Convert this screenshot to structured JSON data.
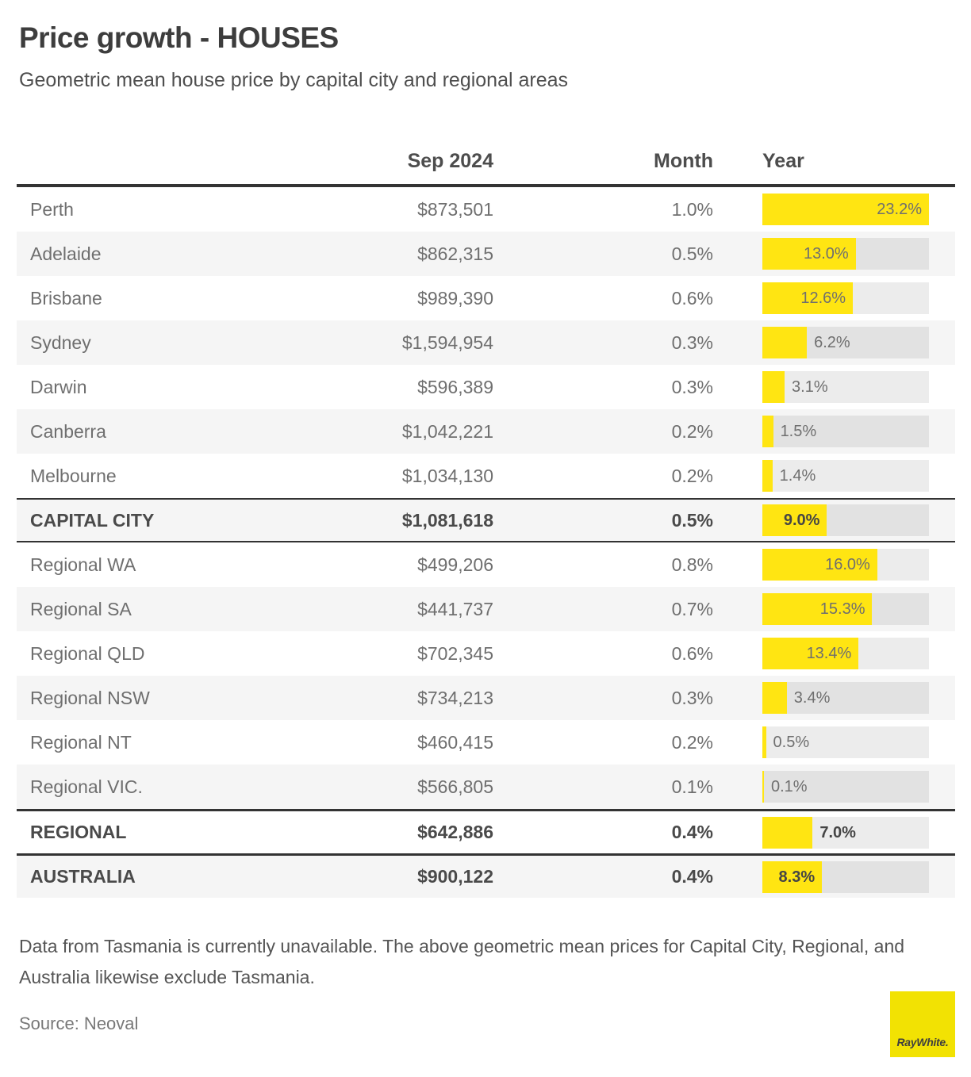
{
  "page": {
    "title": "Price growth - HOUSES",
    "subtitle": "Geometric mean house price by capital city and regional areas",
    "footnote": "Data from Tasmania is currently unavailable. The above geometric mean prices for Capital City, Regional, and Australia likewise exclude Tasmania.",
    "source_label": "Source: Neoval",
    "logo_text": "RayWhite."
  },
  "table": {
    "columns": {
      "period": "Sep 2024",
      "month": "Month",
      "year": "Year"
    },
    "rows": [
      {
        "name": "Perth",
        "price": "$873,501",
        "month": "1.0%",
        "year_label": "23.2%",
        "year_value": 23.2,
        "emphasis": false,
        "rule_top": "none",
        "rule_bottom": false
      },
      {
        "name": "Adelaide",
        "price": "$862,315",
        "month": "0.5%",
        "year_label": "13.0%",
        "year_value": 13.0,
        "emphasis": false,
        "rule_top": "none",
        "rule_bottom": false
      },
      {
        "name": "Brisbane",
        "price": "$989,390",
        "month": "0.6%",
        "year_label": "12.6%",
        "year_value": 12.6,
        "emphasis": false,
        "rule_top": "none",
        "rule_bottom": false
      },
      {
        "name": "Sydney",
        "price": "$1,594,954",
        "month": "0.3%",
        "year_label": "6.2%",
        "year_value": 6.2,
        "emphasis": false,
        "rule_top": "none",
        "rule_bottom": false
      },
      {
        "name": "Darwin",
        "price": "$596,389",
        "month": "0.3%",
        "year_label": "3.1%",
        "year_value": 3.1,
        "emphasis": false,
        "rule_top": "none",
        "rule_bottom": false
      },
      {
        "name": "Canberra",
        "price": "$1,042,221",
        "month": "0.2%",
        "year_label": "1.5%",
        "year_value": 1.5,
        "emphasis": false,
        "rule_top": "none",
        "rule_bottom": false
      },
      {
        "name": "Melbourne",
        "price": "$1,034,130",
        "month": "0.2%",
        "year_label": "1.4%",
        "year_value": 1.4,
        "emphasis": false,
        "rule_top": "none",
        "rule_bottom": false
      },
      {
        "name": "CAPITAL CITY",
        "price": "$1,081,618",
        "month": "0.5%",
        "year_label": "9.0%",
        "year_value": 9.0,
        "emphasis": true,
        "rule_top": "thin",
        "rule_bottom": true
      },
      {
        "name": "Regional WA",
        "price": "$499,206",
        "month": "0.8%",
        "year_label": "16.0%",
        "year_value": 16.0,
        "emphasis": false,
        "rule_top": "none",
        "rule_bottom": false
      },
      {
        "name": "Regional SA",
        "price": "$441,737",
        "month": "0.7%",
        "year_label": "15.3%",
        "year_value": 15.3,
        "emphasis": false,
        "rule_top": "none",
        "rule_bottom": false
      },
      {
        "name": "Regional QLD",
        "price": "$702,345",
        "month": "0.6%",
        "year_label": "13.4%",
        "year_value": 13.4,
        "emphasis": false,
        "rule_top": "none",
        "rule_bottom": false
      },
      {
        "name": "Regional NSW",
        "price": "$734,213",
        "month": "0.3%",
        "year_label": "3.4%",
        "year_value": 3.4,
        "emphasis": false,
        "rule_top": "none",
        "rule_bottom": false
      },
      {
        "name": "Regional NT",
        "price": "$460,415",
        "month": "0.2%",
        "year_label": "0.5%",
        "year_value": 0.5,
        "emphasis": false,
        "rule_top": "none",
        "rule_bottom": false
      },
      {
        "name": "Regional VIC.",
        "price": "$566,805",
        "month": "0.1%",
        "year_label": "0.1%",
        "year_value": 0.1,
        "emphasis": false,
        "rule_top": "none",
        "rule_bottom": false
      },
      {
        "name": "REGIONAL",
        "price": "$642,886",
        "month": "0.4%",
        "year_label": "7.0%",
        "year_value": 7.0,
        "emphasis": true,
        "rule_top": "thick",
        "rule_bottom": false
      },
      {
        "name": "AUSTRALIA",
        "price": "$900,122",
        "month": "0.4%",
        "year_label": "8.3%",
        "year_value": 8.3,
        "emphasis": true,
        "rule_top": "thick",
        "rule_bottom": false
      }
    ]
  },
  "chart_data": {
    "type": "bar",
    "orientation": "horizontal",
    "title": "Price growth - HOUSES",
    "subtitle": "Geometric mean house price by capital city and regional areas",
    "categories": [
      "Perth",
      "Adelaide",
      "Brisbane",
      "Sydney",
      "Darwin",
      "Canberra",
      "Melbourne",
      "CAPITAL CITY",
      "Regional WA",
      "Regional SA",
      "Regional QLD",
      "Regional NSW",
      "Regional NT",
      "Regional VIC.",
      "REGIONAL",
      "AUSTRALIA"
    ],
    "series": [
      {
        "name": "Sep 2024 geometric mean price (AUD)",
        "values": [
          873501,
          862315,
          989390,
          1594954,
          596389,
          1042221,
          1034130,
          1081618,
          499206,
          441737,
          702345,
          734213,
          460415,
          566805,
          642886,
          900122
        ]
      },
      {
        "name": "Month change (%)",
        "values": [
          1.0,
          0.5,
          0.6,
          0.3,
          0.3,
          0.2,
          0.2,
          0.5,
          0.8,
          0.7,
          0.6,
          0.3,
          0.2,
          0.1,
          0.4,
          0.4
        ]
      },
      {
        "name": "Year change (%)",
        "values": [
          23.2,
          13.0,
          12.6,
          6.2,
          3.1,
          1.5,
          1.4,
          9.0,
          16.0,
          15.3,
          13.4,
          3.4,
          0.5,
          0.1,
          7.0,
          8.3
        ]
      }
    ],
    "bar_series": "Year change (%)",
    "xlim": [
      0,
      23.2
    ],
    "legend": "none",
    "grid": false,
    "source": "Neoval"
  },
  "colors": {
    "accent_yellow": "#FFE512",
    "logo_yellow": "#F2E203",
    "bar_track_gray": "#e9e9e9",
    "row_alt_gray": "#f5f5f5",
    "rule_dark": "#333333",
    "text_dark": "#3d3d3d",
    "text_medium": "#6f6f6f"
  }
}
